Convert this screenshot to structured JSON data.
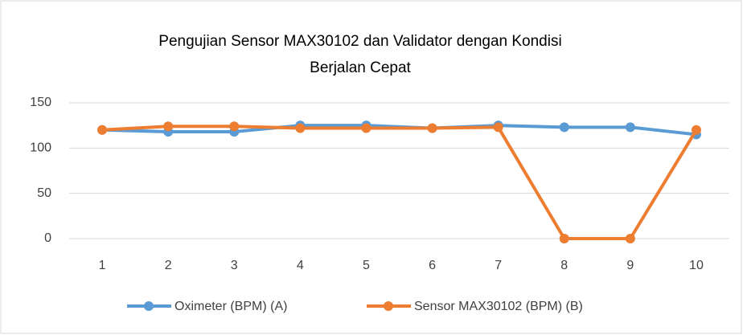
{
  "chart_data": {
    "type": "line",
    "title": [
      "Pengujian Sensor MAX30102 dan Validator dengan Kondisi",
      "Berjalan Cepat"
    ],
    "categories": [
      "1",
      "2",
      "3",
      "4",
      "5",
      "6",
      "7",
      "8",
      "9",
      "10"
    ],
    "series": [
      {
        "name": "Oximeter (BPM) (A)",
        "color": "#5b9bd5",
        "values": [
          120,
          118,
          118,
          125,
          125,
          122,
          125,
          123,
          123,
          115
        ]
      },
      {
        "name": "Sensor MAX30102 (BPM) (B)",
        "color": "#ed7d31",
        "values": [
          120,
          124,
          124,
          122,
          122,
          122,
          123,
          0,
          0,
          120
        ]
      }
    ],
    "ylim": [
      0,
      150
    ],
    "yticks": [
      0,
      50,
      100,
      150
    ],
    "grid": true,
    "legend": "bottom"
  }
}
